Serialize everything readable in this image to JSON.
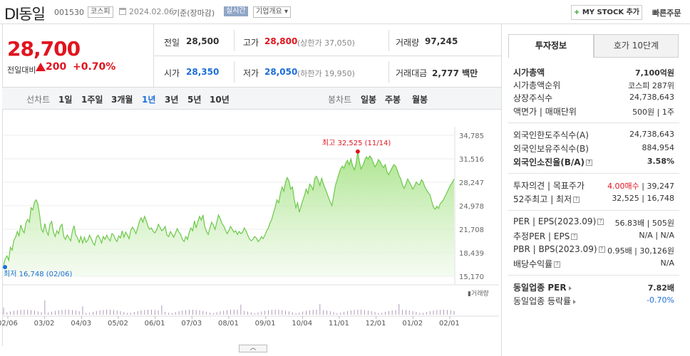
{
  "header": {
    "stock_name": "DI동일",
    "stock_code": "001530",
    "market": "코스피",
    "date": "2024.02.06",
    "date_suffix": "기준(장마감)",
    "realtime": "실시간",
    "company_overview": "기업개요 ▾",
    "mystock_plus": "+",
    "mystock_label": " MY STOCK 추가",
    "quick_order": "빠른주문"
  },
  "price": {
    "current": "28,700",
    "change_label": "전일대비",
    "change": "200",
    "change_pct": "+0.70%"
  },
  "quote": {
    "prev_close_label": "전일",
    "prev_close": "28,500",
    "high_label": "고가",
    "high": "28,800",
    "upper_limit": "(상한가 37,050)",
    "volume_label": "거래량",
    "volume": "97,245",
    "open_label": "시가",
    "open": "28,350",
    "low_label": "저가",
    "low": "28,050",
    "lower_limit": "(하한가 19,950)",
    "amount_label": "거래대금",
    "amount": "2,777 백만"
  },
  "tabs": {
    "line_label": "선차트",
    "periods": [
      "1일",
      "1주일",
      "3개월",
      "1년",
      "3년",
      "5년",
      "10년"
    ],
    "active_period": "1년",
    "candle_label": "봉차트",
    "candles": [
      "일봉",
      "주봉",
      "월봉"
    ]
  },
  "chart_data": {
    "type": "area",
    "title": "",
    "x_ticks": [
      "02/06",
      "03/02",
      "04/03",
      "05/02",
      "06/01",
      "07/03",
      "08/01",
      "09/01",
      "10/04",
      "11/01",
      "12/01",
      "01/02",
      "02/01"
    ],
    "y_ticks": [
      34785,
      31516,
      28247,
      24978,
      21708,
      18439,
      15170
    ],
    "ylim": [
      15170,
      34785
    ],
    "max_label": "최고 32,525 (11/14)",
    "min_label": "최저 16,748 (02/06)",
    "volume_label": "거래량",
    "series": [
      {
        "values": [
          16748,
          17600,
          18000,
          17400,
          19200,
          18800,
          20200,
          20600,
          21400,
          20800,
          22300,
          21600,
          21200,
          22600,
          23100,
          22700,
          24700,
          24400,
          25500,
          25800,
          25200,
          23600,
          21700,
          21300,
          22500,
          21400,
          20900,
          22400,
          22800,
          21300,
          20700,
          21500,
          21100,
          22100,
          22400,
          20700,
          20300,
          20900,
          20500,
          20100,
          21400,
          22200,
          20900,
          20500,
          19900,
          20700,
          19800,
          20600,
          19900,
          20200,
          20900,
          20400,
          19800,
          19500,
          20600,
          20900,
          20400,
          19800,
          20700,
          20300,
          20900,
          20400,
          20100,
          21100,
          20900,
          20300,
          20000,
          20800,
          20500,
          21500,
          20600,
          21300,
          20900,
          20400,
          21600,
          22000,
          21600,
          21100,
          21900,
          22800,
          23300,
          22700,
          23500,
          22900,
          22100,
          21700,
          21900,
          21400,
          21200,
          21600,
          22400,
          22000,
          21500,
          21700,
          22100,
          20900,
          20700,
          21400,
          21000,
          20600,
          21200,
          21800,
          21300,
          21000,
          20300,
          20000,
          20700,
          20300,
          21300,
          21900,
          21500,
          22900,
          21900,
          22800,
          23500,
          23000,
          23700,
          22100,
          21400,
          21000,
          21900,
          22700,
          22300,
          21700,
          22700,
          23700,
          23200,
          22500,
          22200,
          21600,
          21100,
          21500,
          22100,
          21700,
          21300,
          21500,
          21000,
          21400,
          21100,
          21300,
          21900,
          21500,
          20900,
          20400,
          20100,
          20300,
          20700,
          20500,
          20000,
          20200,
          20700,
          20400,
          20900,
          21500,
          21900,
          22600,
          23100,
          24000,
          24800,
          25800,
          25400,
          26700,
          27600,
          27000,
          28300,
          28900,
          28400,
          27300,
          27600,
          25900,
          24700,
          25400,
          24100,
          24900,
          25700,
          26400,
          27300,
          26700,
          28000,
          27700,
          27200,
          28800,
          29100,
          28500,
          27800,
          28800,
          28000,
          27400,
          26800,
          26100,
          25500,
          25000,
          26400,
          27800,
          28600,
          29400,
          30100,
          30500,
          30200,
          30900,
          31300,
          30700,
          31500,
          30500,
          30000,
          30800,
          32525,
          31000,
          30100,
          30600,
          31300,
          31800,
          31500,
          31900,
          31600,
          31000,
          30400,
          30800,
          31400,
          31100,
          30600,
          30300,
          30700,
          29700,
          29300,
          29800,
          30300,
          30700,
          30500,
          29900,
          29200,
          28700,
          27900,
          27400,
          28000,
          28700,
          28300,
          27800,
          27300,
          27700,
          28300,
          28000,
          27900,
          28600,
          28300,
          27600,
          27200,
          26800,
          26500,
          25600,
          24800,
          24500,
          24900,
          24600,
          25300,
          25500,
          25900,
          26400,
          26900,
          27400,
          27900,
          28200,
          28700
        ]
      }
    ]
  }
}
